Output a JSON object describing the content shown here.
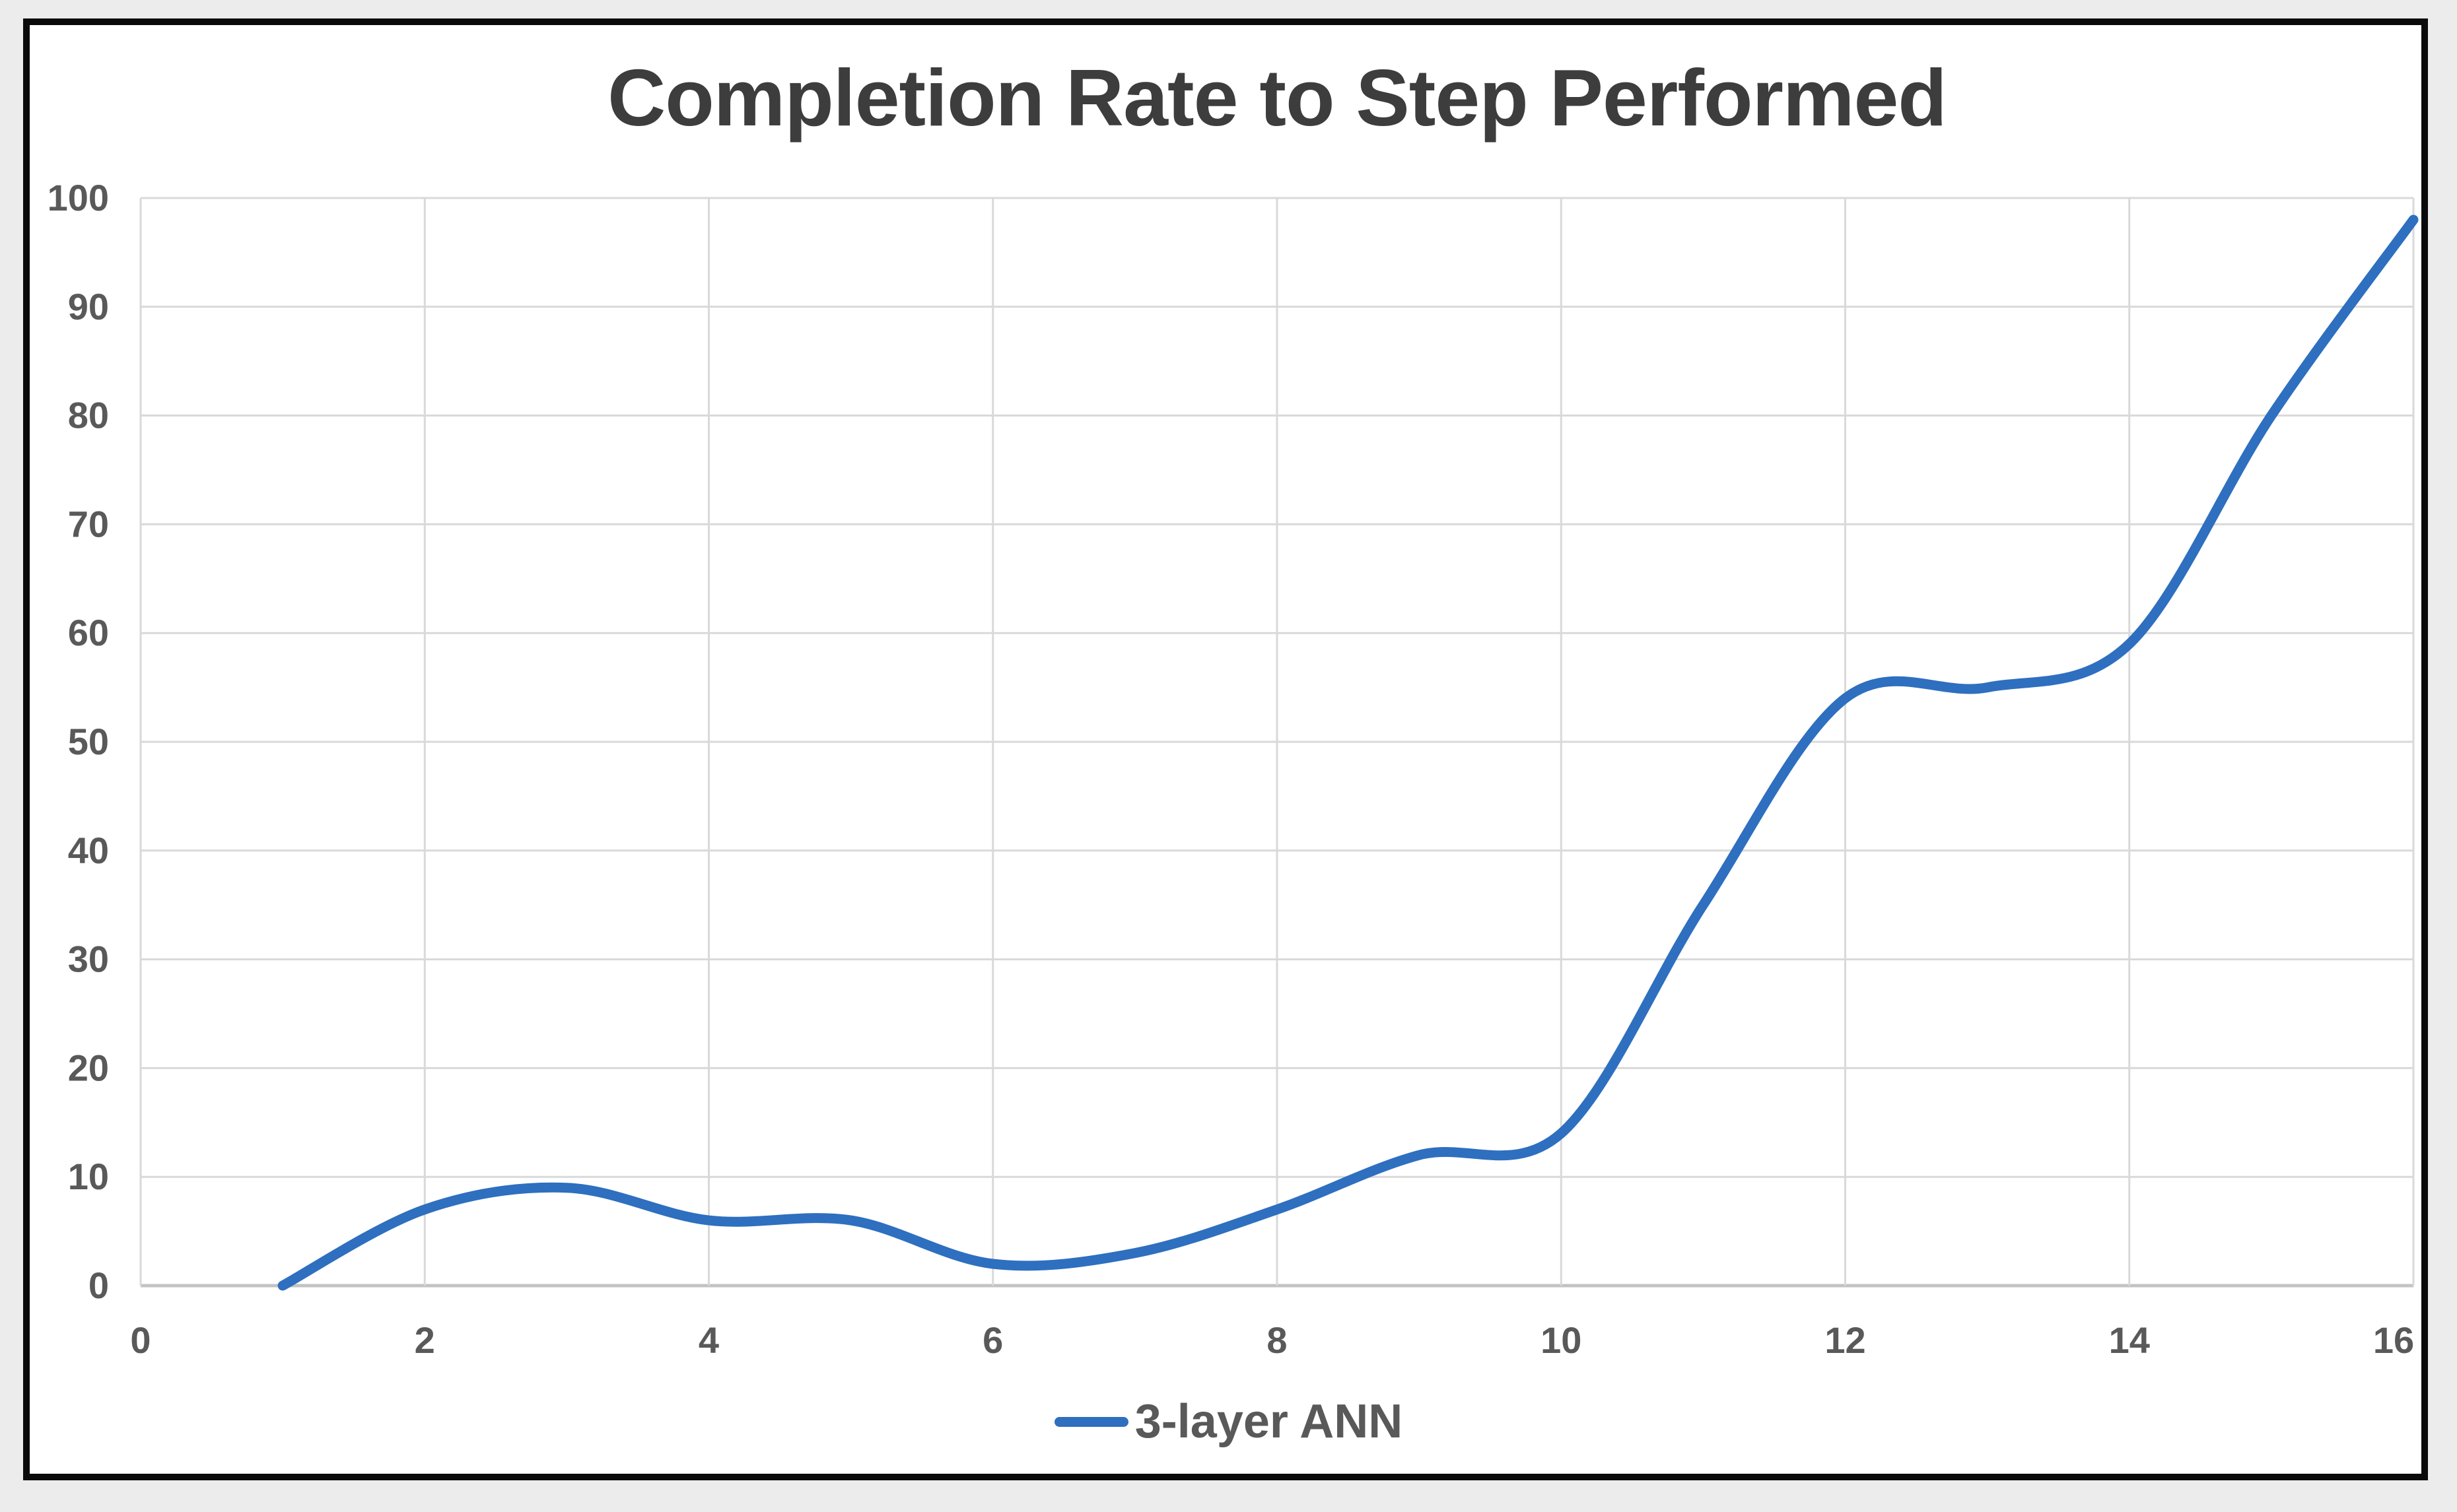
{
  "chart": {
    "title": "Completion Rate to Step Performed",
    "legend": [
      "3-layer ANN"
    ]
  },
  "chart_data": {
    "type": "line",
    "title": "Completion Rate to Step Performed",
    "xlabel": "",
    "ylabel": "",
    "x": [
      1,
      2,
      3,
      4,
      5,
      6,
      7,
      8,
      9,
      10,
      11,
      12,
      13,
      14,
      15,
      16
    ],
    "series": [
      {
        "name": "3-layer ANN",
        "values": [
          0,
          7,
          9,
          6,
          6,
          2,
          3,
          7,
          12,
          14,
          35,
          54,
          55,
          59,
          80,
          98
        ],
        "color": "#2e6fbf",
        "smooth": true
      }
    ],
    "x_ticks": [
      0,
      2,
      4,
      6,
      8,
      10,
      12,
      14,
      16
    ],
    "y_ticks": [
      0,
      10,
      20,
      30,
      40,
      50,
      60,
      70,
      80,
      90,
      100
    ],
    "xlim": [
      0,
      16
    ],
    "ylim": [
      0,
      100
    ],
    "grid": true,
    "legend_position": "bottom",
    "colors": {
      "series_line": "#2e6fbf",
      "gridline": "#d9d9d9",
      "axis_line": "#c3c3c3",
      "tick_label": "#595959",
      "title": "#3d3d3d",
      "plot_background": "#ffffff",
      "frame_border": "#0a0a0a",
      "page_margin": "#ececec"
    }
  }
}
